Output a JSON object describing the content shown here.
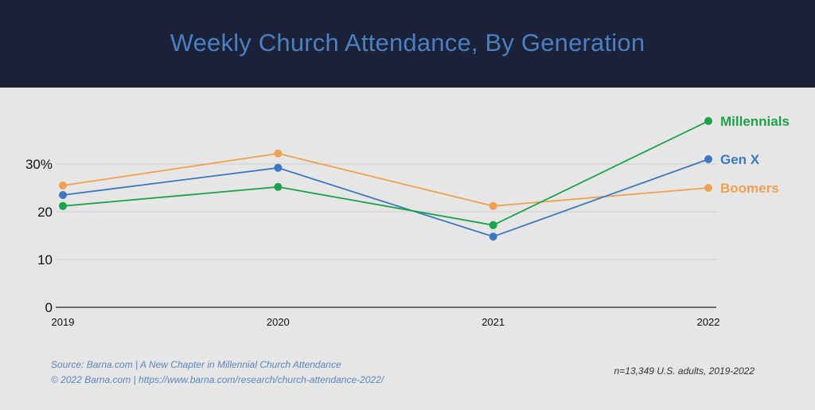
{
  "chart_data": {
    "type": "line",
    "title": "Weekly Church Attendance, By Generation",
    "xlabel": "",
    "ylabel": "",
    "categories": [
      "2019",
      "2020",
      "2021",
      "2022"
    ],
    "ylim": [
      0,
      40
    ],
    "yticks": [
      {
        "value": 0,
        "label": "0"
      },
      {
        "value": 10,
        "label": "10"
      },
      {
        "value": 20,
        "label": "20"
      },
      {
        "value": 30,
        "label": "30%"
      }
    ],
    "grid": true,
    "legend_position": "right, at line ends",
    "series": [
      {
        "name": "Boomers",
        "color": "#f0a050",
        "values": [
          25.5,
          32.2,
          21.2,
          25
        ]
      },
      {
        "name": "Gen X",
        "color": "#3a78c2",
        "values": [
          23.5,
          29.2,
          14.8,
          31
        ]
      },
      {
        "name": "Millennials",
        "color": "#1aa34a",
        "values": [
          21.2,
          25.2,
          17.2,
          39
        ]
      }
    ]
  },
  "footer": {
    "source_line": "Source: Barna.com | A New Chapter in Millennial Church Attendance",
    "copyright_line": "© 2022 Barna.com | https://www.barna.com/research/church-attendance-2022/",
    "sample_note": "n=13,349 U.S. adults, 2019-2022"
  }
}
